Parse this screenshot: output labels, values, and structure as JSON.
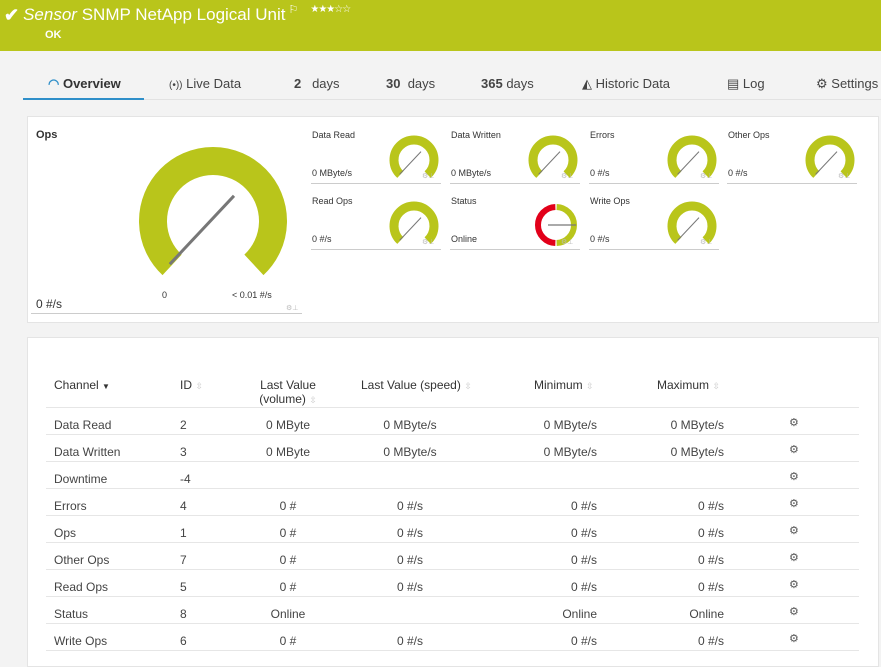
{
  "header": {
    "title_prefix": "Sensor",
    "title": "SNMP NetApp Logical Unit",
    "status": "OK",
    "rating_stars": 3,
    "rating_max": 5,
    "color": "#b9c51b"
  },
  "tabs": [
    {
      "label": "Overview",
      "icon": "gauge-icon",
      "active": true
    },
    {
      "label": "Live Data",
      "icon": "broadcast-icon"
    },
    {
      "num": "2",
      "label": "days"
    },
    {
      "num": "30",
      "label": "days"
    },
    {
      "num": "365",
      "label": "days"
    },
    {
      "label": "Historic Data",
      "icon": "area-chart-icon"
    },
    {
      "label": "Log",
      "icon": "log-icon"
    },
    {
      "label": "Settings",
      "icon": "gear-icon"
    }
  ],
  "main_gauge": {
    "label": "Ops",
    "value": "0 #/s",
    "min_label": "0",
    "max_label": "< 0.01 #/s",
    "level": 0
  },
  "gauges": [
    {
      "label": "Data Read",
      "value": "0 MByte/s"
    },
    {
      "label": "Data Written",
      "value": "0 MByte/s"
    },
    {
      "label": "Errors",
      "value": "0 #/s"
    },
    {
      "label": "Other Ops",
      "value": "0 #/s"
    },
    {
      "label": "Read Ops",
      "value": "0 #/s"
    },
    {
      "label": "Status",
      "value": "Online",
      "type": "status"
    },
    {
      "label": "Write Ops",
      "value": "0 #/s"
    }
  ],
  "colors": {
    "gauge_green": "#b9c51b",
    "gauge_red": "#e2001a",
    "tab_accent": "#2f8fc9"
  },
  "table": {
    "columns": [
      "Channel",
      "ID",
      "Last Value (volume)",
      "Last Value (speed)",
      "Minimum",
      "Maximum"
    ],
    "col_volume_l1": "Last Value",
    "col_volume_l2": "(volume)",
    "rows": [
      [
        "Data Read",
        "2",
        "0 MByte",
        "0 MByte/s",
        "0 MByte/s",
        "0 MByte/s"
      ],
      [
        "Data Written",
        "3",
        "0 MByte",
        "0 MByte/s",
        "0 MByte/s",
        "0 MByte/s"
      ],
      [
        "Downtime",
        "-4",
        "",
        "",
        "",
        ""
      ],
      [
        "Errors",
        "4",
        "0 #",
        "0 #/s",
        "0 #/s",
        "0 #/s"
      ],
      [
        "Ops",
        "1",
        "0 #",
        "0 #/s",
        "0 #/s",
        "0 #/s"
      ],
      [
        "Other Ops",
        "7",
        "0 #",
        "0 #/s",
        "0 #/s",
        "0 #/s"
      ],
      [
        "Read Ops",
        "5",
        "0 #",
        "0 #/s",
        "0 #/s",
        "0 #/s"
      ],
      [
        "Status",
        "8",
        "Online",
        "",
        "Online",
        "Online"
      ],
      [
        "Write Ops",
        "6",
        "0 #",
        "0 #/s",
        "0 #/s",
        "0 #/s"
      ]
    ]
  }
}
